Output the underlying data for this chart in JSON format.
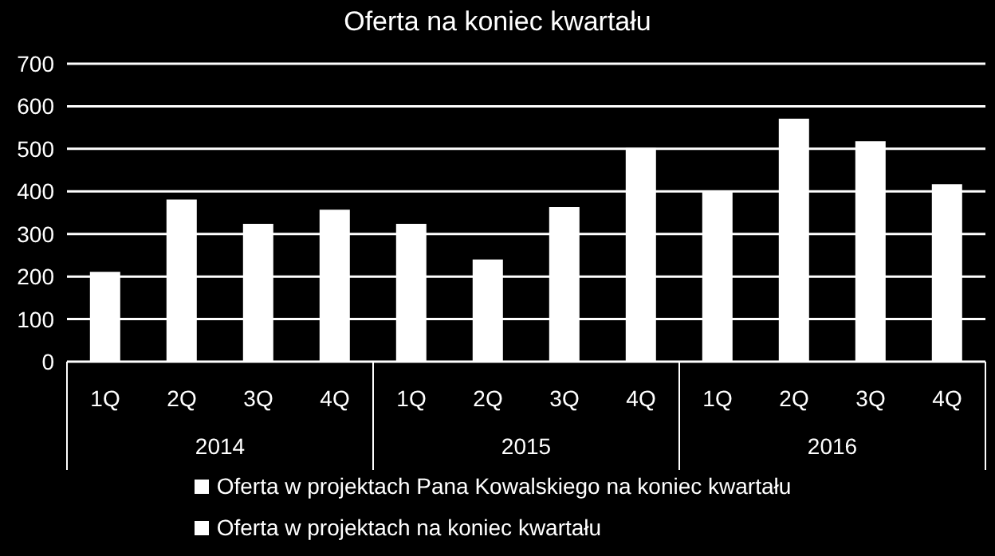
{
  "chart_data": {
    "type": "bar",
    "title": "Oferta na koniec kwartału",
    "categories": [
      "1Q",
      "2Q",
      "3Q",
      "4Q",
      "1Q",
      "2Q",
      "3Q",
      "4Q",
      "1Q",
      "2Q",
      "3Q",
      "4Q"
    ],
    "annotations": [
      "2014",
      "2015",
      "2016"
    ],
    "series": [
      {
        "name": "Oferta w projektach Pana Kowalskiego na koniec kwartału",
        "color": "#ffffff",
        "values": [
          211,
          381,
          324,
          357,
          324,
          240,
          363,
          502,
          401,
          571,
          518,
          417
        ]
      },
      {
        "name": "Oferta w projektach na koniec kwartału",
        "color": "#ffffff",
        "values": [
          null,
          null,
          null,
          null,
          null,
          null,
          null,
          null,
          null,
          null,
          null,
          null
        ]
      }
    ],
    "stacked": true,
    "ylim": [
      0,
      700
    ],
    "yticks": [
      0,
      100,
      200,
      300,
      400,
      500,
      600,
      700
    ],
    "grid": "y",
    "legend": "bottom"
  }
}
